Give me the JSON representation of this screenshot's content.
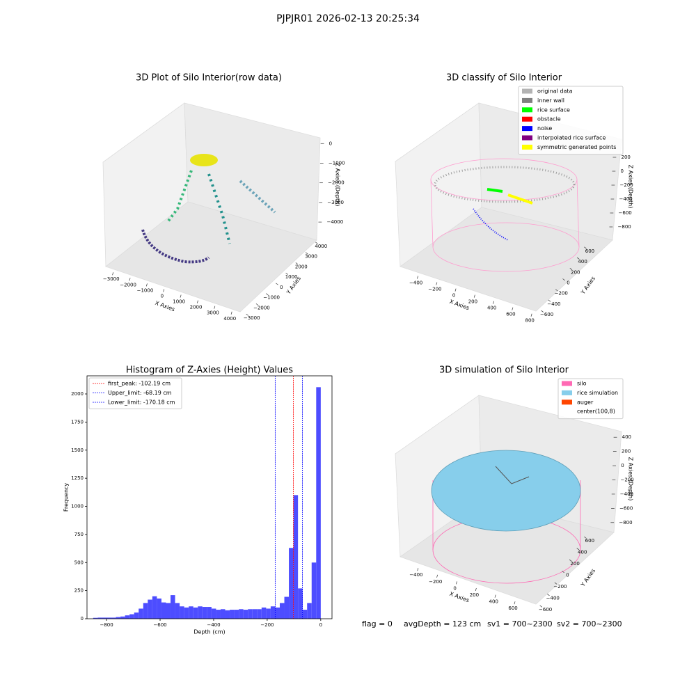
{
  "title": "PJPJR01 2026-02-13 20:25:34",
  "footer": [
    "flag = 0",
    "avgDepth = 123 cm",
    "sv1 = 700~2300",
    "sv2 = 700~2300"
  ],
  "chart_data": [
    {
      "type": "scatter3d",
      "title": "3D Plot of Silo Interior(row data)",
      "x_label": "X Axies",
      "y_label": "Y Axies",
      "z_label": "Z Axies (Depth)",
      "xlim": [
        -3400,
        4400
      ],
      "ylim": [
        -3400,
        4400
      ],
      "zlim": [
        -4600,
        400
      ],
      "xticks": [
        {
          "value": -3000,
          "label": "−3000"
        },
        {
          "value": -2000,
          "label": "−2000"
        },
        {
          "value": -1000,
          "label": "−1000"
        },
        0,
        1000,
        2000,
        3000,
        4000
      ],
      "yticks": [
        {
          "value": -3000,
          "label": "−3000"
        },
        {
          "value": -2000,
          "label": "−2000"
        },
        {
          "value": -1000,
          "label": "−1000"
        },
        0,
        1000,
        2000,
        3000,
        4000
      ],
      "zticks": [
        0,
        {
          "value": -1000,
          "label": "−1000"
        },
        {
          "value": -2000,
          "label": "−2000"
        },
        {
          "value": -3000,
          "label": "−3000"
        },
        {
          "value": -4000,
          "label": "−4000"
        }
      ]
    },
    {
      "type": "scatter3d",
      "title": "3D classify of Silo Interior",
      "x_label": "X Axies",
      "y_label": "Y Axies",
      "z_label": "Z Axies (Depth)",
      "xlim": [
        -500,
        850
      ],
      "ylim": [
        -650,
        650
      ],
      "zlim": [
        -900,
        300
      ],
      "xticks": [
        {
          "value": -400,
          "label": "−400"
        },
        {
          "value": -200,
          "label": "−200"
        },
        0,
        200,
        400,
        600,
        800
      ],
      "yticks": [
        {
          "value": -600,
          "label": "−600"
        },
        {
          "value": -400,
          "label": "−400"
        },
        {
          "value": -200,
          "label": "−200"
        },
        0,
        200,
        400,
        600
      ],
      "zticks": [
        200,
        0,
        {
          "value": -200,
          "label": "−200"
        },
        {
          "value": -400,
          "label": "−400"
        },
        {
          "value": -600,
          "label": "−600"
        },
        {
          "value": -800,
          "label": "−800"
        }
      ],
      "legend": "upper right",
      "series": [
        {
          "name": "original data",
          "color": "#b3b3b3"
        },
        {
          "name": "inner wall",
          "color": "#808080"
        },
        {
          "name": "rice surface",
          "color": "#00ff00"
        },
        {
          "name": "obstacle",
          "color": "#ff0000"
        },
        {
          "name": "noise",
          "color": "#0000ff"
        },
        {
          "name": "interpolated rice surface",
          "color": "#800080"
        },
        {
          "name": "symmetric generated points",
          "color": "#ffff00"
        }
      ]
    },
    {
      "type": "histogram",
      "title": "Histogram of Z-Axies (Height) Values",
      "x_label": "Depth (cm)",
      "y_label": "Frequency",
      "color": "#4d4dff",
      "bins": [
        -850,
        -833,
        -816,
        -799,
        -782,
        -765,
        -748,
        -731,
        -714,
        -697,
        -680,
        -663,
        -646,
        -629,
        -612,
        -595,
        -578,
        -561,
        -544,
        -527,
        -510,
        -493,
        -476,
        -459,
        -442,
        -425,
        -408,
        -391,
        -374,
        -357,
        -340,
        -323,
        -306,
        -289,
        -272,
        -255,
        -238,
        -221,
        -204,
        -187,
        -170,
        -153,
        -136,
        -119,
        -102,
        -85,
        -68,
        -51,
        -34,
        -17,
        0
      ],
      "values": [
        8,
        10,
        10,
        10,
        10,
        15,
        20,
        30,
        40,
        55,
        90,
        140,
        170,
        200,
        180,
        145,
        140,
        210,
        140,
        110,
        100,
        110,
        100,
        110,
        105,
        105,
        90,
        80,
        85,
        75,
        80,
        80,
        85,
        80,
        85,
        85,
        85,
        100,
        90,
        110,
        100,
        140,
        195,
        630,
        1100,
        270,
        80,
        140,
        500,
        2060
      ],
      "xlim": [
        -873,
        42
      ],
      "ylim": [
        0,
        2161
      ],
      "xticks": [
        {
          "value": -800,
          "label": "−800"
        },
        {
          "value": -600,
          "label": "−600"
        },
        {
          "value": -400,
          "label": "−400"
        },
        {
          "value": -200,
          "label": "−200"
        },
        0
      ],
      "yticks": [
        0,
        250,
        500,
        750,
        1000,
        1250,
        1500,
        1750,
        2000
      ],
      "legend": "upper left",
      "vlines": [
        {
          "name": "first_peak: -102.19 cm",
          "value": -102.19,
          "color": "#ff0000"
        },
        {
          "name": "Upper_limit: -68.19 cm",
          "value": -68.19,
          "color": "#0000ff"
        },
        {
          "name": "Lower_limit: -170.18 cm",
          "value": -170.18,
          "color": "#0000ff"
        }
      ]
    },
    {
      "type": "surface3d",
      "title": "3D simulation of Silo Interior",
      "x_label": "X Axies",
      "y_label": "Y Axies",
      "z_label": "Z Axies (Depth)",
      "xlim": [
        -550,
        700
      ],
      "ylim": [
        -650,
        650
      ],
      "zlim": [
        -900,
        500
      ],
      "xticks": [
        {
          "value": -400,
          "label": "−400"
        },
        {
          "value": -200,
          "label": "−200"
        },
        0,
        200,
        400,
        600
      ],
      "yticks": [
        {
          "value": -600,
          "label": "−600"
        },
        {
          "value": -400,
          "label": "−400"
        },
        {
          "value": -200,
          "label": "−200"
        },
        0,
        200,
        400,
        600
      ],
      "zticks": [
        400,
        200,
        0,
        {
          "value": -200,
          "label": "−200"
        },
        {
          "value": -400,
          "label": "−400"
        },
        {
          "value": -600,
          "label": "−600"
        },
        {
          "value": -800,
          "label": "−800"
        }
      ],
      "legend": "upper right",
      "series": [
        {
          "name": "silo",
          "color": "#ff69b4"
        },
        {
          "name": "rice simulation",
          "color": "#87ceeb"
        },
        {
          "name": "auger",
          "color": "#ff4500"
        },
        {
          "name": "center(100,8)",
          "color": "#ffffff"
        }
      ]
    }
  ]
}
